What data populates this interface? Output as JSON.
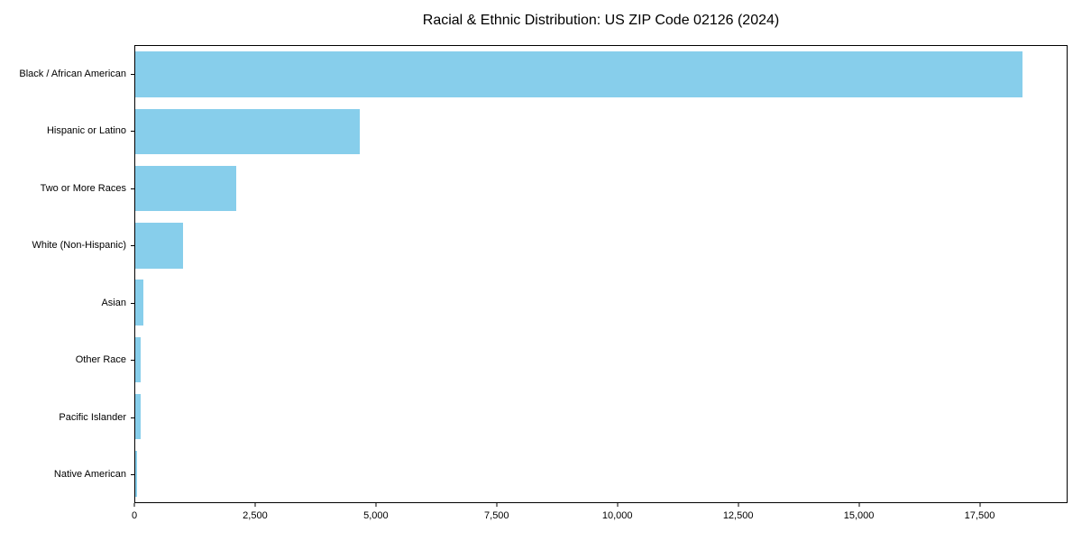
{
  "title": "Racial & Ethnic Distribution: US ZIP Code 02126 (2024)",
  "colors": {
    "bar": "#87CEEB",
    "axis": "#000000",
    "background": "#ffffff"
  },
  "chart_data": {
    "type": "bar",
    "orientation": "horizontal",
    "title": "Racial & Ethnic Distribution: US ZIP Code 02126 (2024)",
    "xlabel": "",
    "ylabel": "",
    "categories": [
      "Black / African American",
      "Hispanic or Latino",
      "Two or More Races",
      "White (Non-Hispanic)",
      "Asian",
      "Other Race",
      "Pacific Islander",
      "Native American"
    ],
    "values": [
      18400,
      4650,
      2100,
      990,
      170,
      120,
      105,
      45
    ],
    "xlim": [
      0,
      19320
    ],
    "x_ticks": [
      0,
      2500,
      5000,
      7500,
      10000,
      12500,
      15000,
      17500
    ],
    "x_tick_labels": [
      "0",
      "2,500",
      "5,000",
      "7,500",
      "10,000",
      "12,500",
      "15,000",
      "17,500"
    ],
    "bar_color": "#87CEEB",
    "bar_height_fraction": 0.8,
    "grid": false,
    "legend": null
  }
}
